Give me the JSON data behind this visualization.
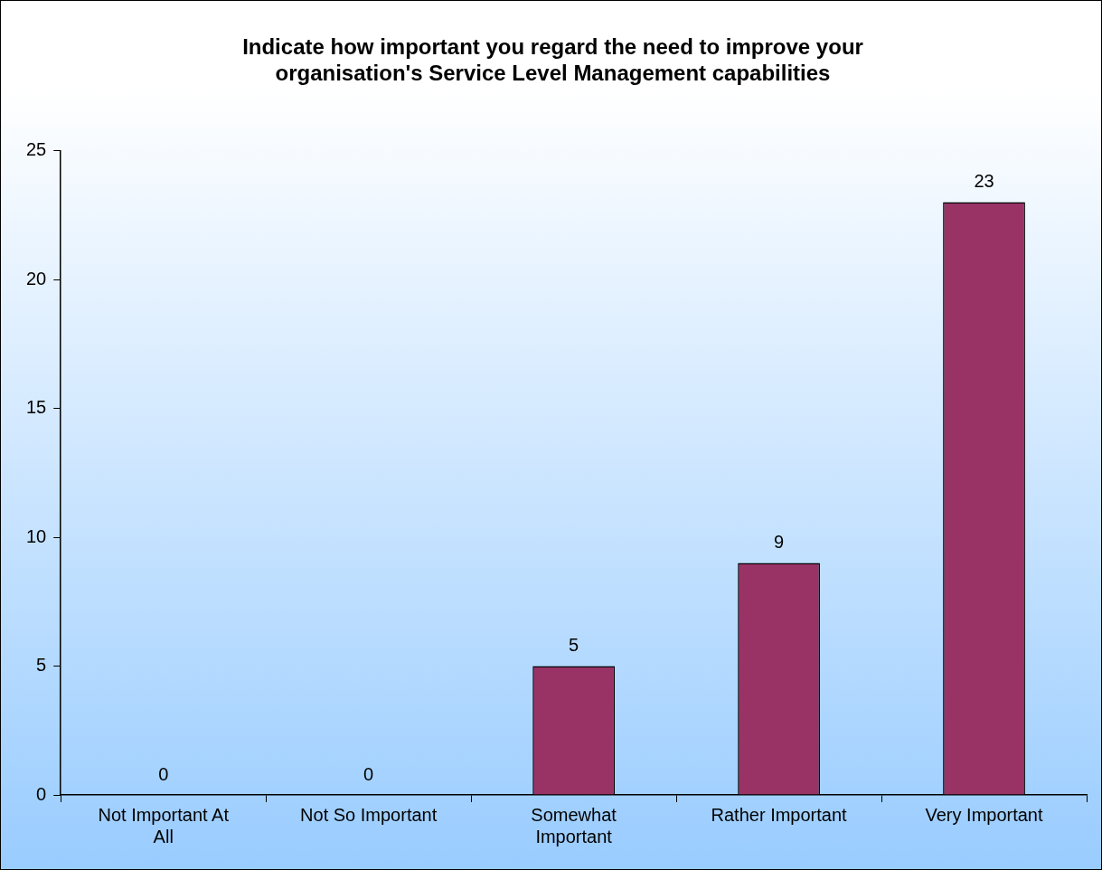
{
  "chart_data": {
    "type": "bar",
    "title": "Indicate how important you regard the need to improve your organisation's Service Level Management capabilities",
    "categories": [
      "Not Important At All",
      "Not So Important",
      "Somewhat Important",
      "Rather Important",
      "Very Important"
    ],
    "values": [
      0,
      0,
      5,
      9,
      23
    ],
    "color": "#993366",
    "ylim": [
      0,
      25
    ],
    "yticks": [
      0,
      5,
      10,
      15,
      20,
      25
    ],
    "grid": false,
    "data_labels": true
  }
}
